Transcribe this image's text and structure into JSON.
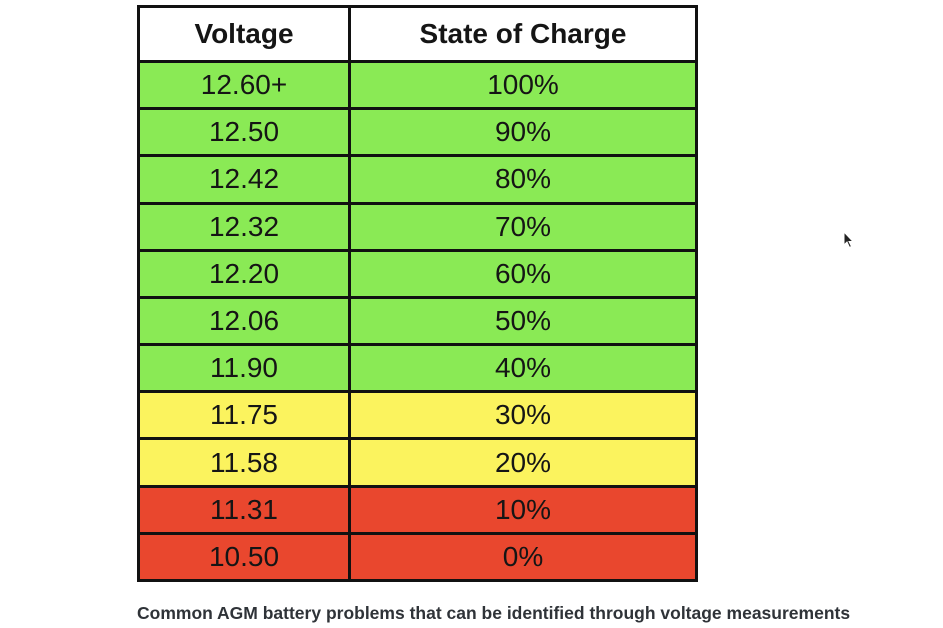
{
  "table": {
    "headers": [
      "Voltage",
      "State of Charge"
    ],
    "rows": [
      {
        "voltage": "12.60+",
        "charge": "100%",
        "level": "green"
      },
      {
        "voltage": "12.50",
        "charge": "90%",
        "level": "green"
      },
      {
        "voltage": "12.42",
        "charge": "80%",
        "level": "green"
      },
      {
        "voltage": "12.32",
        "charge": "70%",
        "level": "green"
      },
      {
        "voltage": "12.20",
        "charge": "60%",
        "level": "green"
      },
      {
        "voltage": "12.06",
        "charge": "50%",
        "level": "green"
      },
      {
        "voltage": "11.90",
        "charge": "40%",
        "level": "green"
      },
      {
        "voltage": "11.75",
        "charge": "30%",
        "level": "yellow"
      },
      {
        "voltage": "11.58",
        "charge": "20%",
        "level": "yellow"
      },
      {
        "voltage": "11.31",
        "charge": "10%",
        "level": "red"
      },
      {
        "voltage": "10.50",
        "charge": "0%",
        "level": "red"
      }
    ]
  },
  "colors": {
    "green": "#8aea55",
    "yellow": "#fbf35e",
    "red": "#e9472e"
  },
  "caption": "Common AGM battery problems that can be identified through voltage measurements"
}
